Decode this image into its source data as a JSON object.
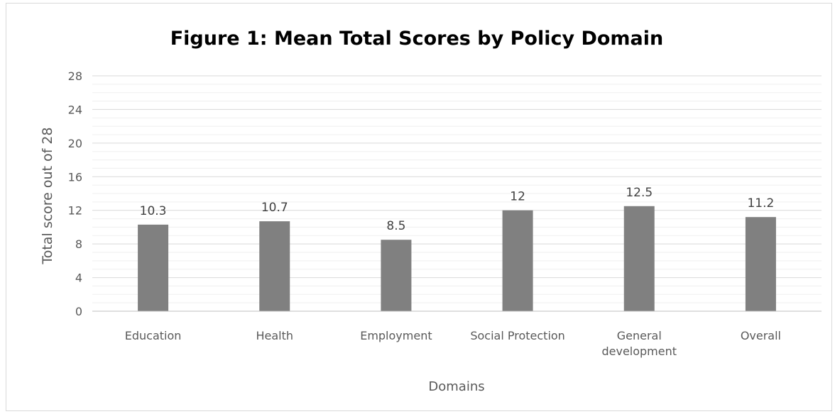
{
  "chart_data": {
    "type": "bar",
    "title": "Figure 1: Mean Total Scores by Policy Domain",
    "xlabel": "Domains",
    "ylabel": "Total score out of 28",
    "categories": [
      [
        "Education"
      ],
      [
        "Health"
      ],
      [
        "Employment"
      ],
      [
        "Social Protection"
      ],
      [
        "General",
        "development"
      ],
      [
        "Overall"
      ]
    ],
    "values": [
      10.3,
      10.7,
      8.5,
      12,
      12.5,
      11.2
    ],
    "data_labels": [
      "10.3",
      "10.7",
      "8.5",
      "12",
      "12.5",
      "11.2"
    ],
    "ylim": [
      0,
      28
    ],
    "yticks": [
      0,
      4,
      8,
      12,
      16,
      20,
      24,
      28
    ],
    "minor_step": 1,
    "grid": true,
    "legend": "none",
    "colors": {
      "bar": "#808080",
      "grid_major": "#d9d9d9",
      "grid_minor": "#efefef"
    }
  }
}
